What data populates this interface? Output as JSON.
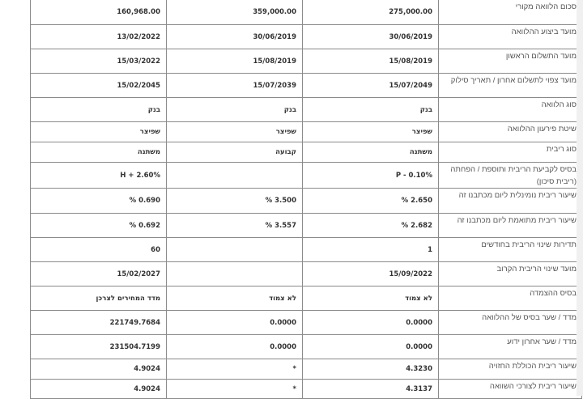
{
  "rows": [
    {
      "label": "סכום הלוואה מקורי",
      "values": [
        "275,000.00",
        "359,000.00",
        "160,968.00"
      ]
    },
    {
      "label": "מועד ביצוע ההלוואה",
      "values": [
        "30/06/2019",
        "30/06/2019",
        "13/02/2022"
      ]
    },
    {
      "label": "מועד התשלום הראשון",
      "values": [
        "15/08/2019",
        "15/08/2019",
        "15/03/2022"
      ]
    },
    {
      "label": "מועד צפוי לתשלום אחרון / תאריך סילוק",
      "values": [
        "15/07/2049",
        "15/07/2039",
        "15/02/2045"
      ]
    },
    {
      "label": "סוג הלוואה",
      "values": [
        "בנק",
        "בנק",
        "בנק"
      ]
    },
    {
      "label": "שיטת פירעון ההלוואה",
      "values": [
        "שפיצר",
        "שפיצר",
        "שפיצר"
      ]
    },
    {
      "label": "סוג ריבית",
      "values": [
        "משתנה",
        "קבועה",
        "משתנה"
      ]
    },
    {
      "label": "בסיס לקביעת הריבית ותוספת / הפחתה (ריבית סיכון)",
      "values": [
        "P - 0.10%",
        "",
        "H + 2.60%"
      ]
    },
    {
      "label": "שיעור ריבית נומינלית ליום מכתבנו זה",
      "values": [
        "2.650 %",
        "3.500 %",
        "0.690 %"
      ]
    },
    {
      "label": "שיעור ריבית מתואמת ליום מכתבנו זה",
      "values": [
        "2.682 %",
        "3.557 %",
        "0.692 %"
      ]
    },
    {
      "label": "תדירות שינוי הריבית בחודשים",
      "values": [
        "1",
        "",
        "60"
      ]
    },
    {
      "label": "מועד שינוי הריבית הקרוב",
      "values": [
        "15/09/2022",
        "",
        "15/02/2027"
      ]
    },
    {
      "label": "בסיס ההצמדה",
      "values": [
        "לא צמוד",
        "לא צמוד",
        "מדד המחירים לצרכן"
      ]
    },
    {
      "label": "מדד / שער בסיס של ההלוואה",
      "values": [
        "0.0000",
        "0.0000",
        "221749.7684"
      ]
    },
    {
      "label": "מדד / שער אחרון ידוע",
      "values": [
        "0.0000",
        "0.0000",
        "231504.7199"
      ]
    },
    {
      "label": "שיעור ריבית הכוללת החזויה",
      "values": [
        "4.3230",
        "*",
        "4.9024"
      ]
    },
    {
      "label": "שיעור ריבית לצורכי השוואה",
      "values": [
        "4.3137",
        "*",
        "4.9024"
      ]
    }
  ]
}
